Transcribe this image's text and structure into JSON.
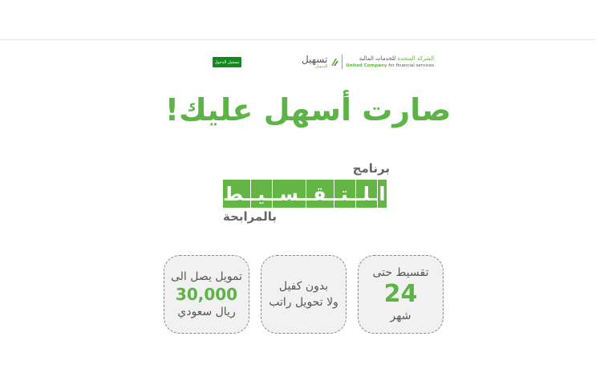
{
  "header": {
    "login_button": "تسجيل الدخول",
    "logo": {
      "brand_ar": "تسهيل",
      "brand_sub": "للتمويل",
      "company_ar_green": "الشركة المتحدة",
      "company_ar_rest": " للخدمات المالية",
      "company_en_green": "United Company",
      "company_en_rest": " for financial services"
    }
  },
  "hero": {
    "headline": "صارت أسهل عليك!",
    "program_top": "برنامج",
    "program_letters": [
      "ا",
      "ـلـ",
      "ـتـ",
      "ـقـ",
      "ـسـ",
      "ـيـ",
      "ـط"
    ],
    "program_bottom": "بالمرابحة"
  },
  "features": [
    {
      "line1": "تقسيط حتى",
      "value": "24",
      "line2": "شهر"
    },
    {
      "line1": "بدون كفيل",
      "line2": "ولا تحويل راتب"
    },
    {
      "line1": "تمويل يصل الى",
      "value": "30,000",
      "line2": "ريال سعودي"
    }
  ],
  "colors": {
    "accent": "#5db446",
    "button": "#138a1e"
  }
}
